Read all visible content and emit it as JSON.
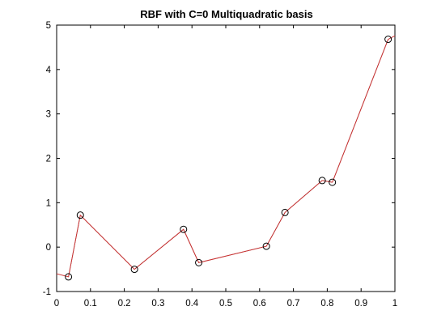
{
  "chart_data": {
    "type": "line",
    "title": "RBF with C=0 Multiquadratic basis",
    "xlabel": "",
    "ylabel": "",
    "xlim": [
      0,
      1
    ],
    "ylim": [
      -1,
      5
    ],
    "xticks": [
      0,
      0.1,
      0.2,
      0.3,
      0.4,
      0.5,
      0.6,
      0.7,
      0.8,
      0.9,
      1
    ],
    "xtick_labels": [
      "0",
      "0.1",
      "0.2",
      "0.3",
      "0.4",
      "0.5",
      "0.6",
      "0.7",
      "0.8",
      "0.9",
      "1"
    ],
    "yticks": [
      -1,
      0,
      1,
      2,
      3,
      4,
      5
    ],
    "ytick_labels": [
      "-1",
      "0",
      "1",
      "2",
      "3",
      "4",
      "5"
    ],
    "grid": false,
    "legend": "none",
    "series": [
      {
        "role": "interpolant",
        "style": "line",
        "color": "#cc3333",
        "x": [
          0,
          0.035,
          0.07,
          0.23,
          0.375,
          0.42,
          0.62,
          0.675,
          0.785,
          0.815,
          0.98,
          1
        ],
        "y": [
          -0.6,
          -0.67,
          0.72,
          -0.5,
          0.4,
          -0.35,
          0.02,
          0.78,
          1.5,
          1.46,
          4.68,
          4.76
        ]
      },
      {
        "role": "data",
        "style": "line-markers",
        "marker": "circle-open",
        "color": "#000000",
        "x": [
          0.035,
          0.07,
          0.23,
          0.375,
          0.42,
          0.62,
          0.675,
          0.785,
          0.815,
          0.98
        ],
        "y": [
          -0.67,
          0.72,
          -0.5,
          0.4,
          -0.35,
          0.02,
          0.78,
          1.5,
          1.46,
          4.68
        ]
      }
    ]
  }
}
